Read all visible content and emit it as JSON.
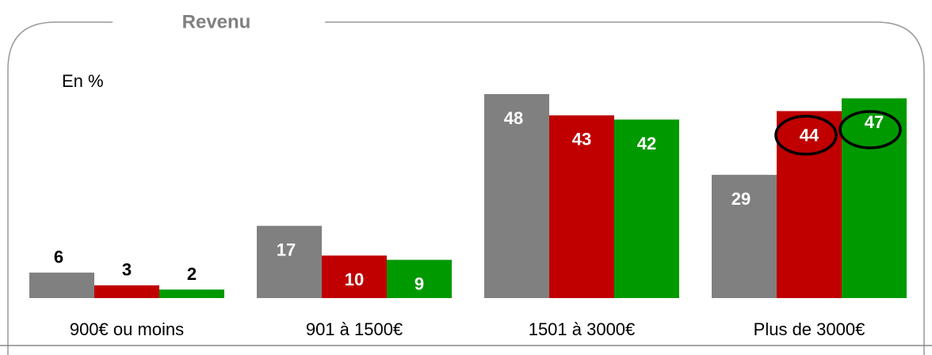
{
  "chart_data": {
    "type": "bar",
    "title": "Revenu",
    "subtitle": "En %",
    "categories": [
      "900€ ou moins",
      "901 à 1500€",
      "1501 à 3000€",
      "Plus de 3000€"
    ],
    "series": [
      {
        "color": "#808080",
        "values": [
          6,
          17,
          48,
          29
        ]
      },
      {
        "color": "#c00000",
        "values": [
          3,
          10,
          43,
          44
        ]
      },
      {
        "color": "#009900",
        "values": [
          2,
          9,
          42,
          47
        ]
      }
    ]
  }
}
